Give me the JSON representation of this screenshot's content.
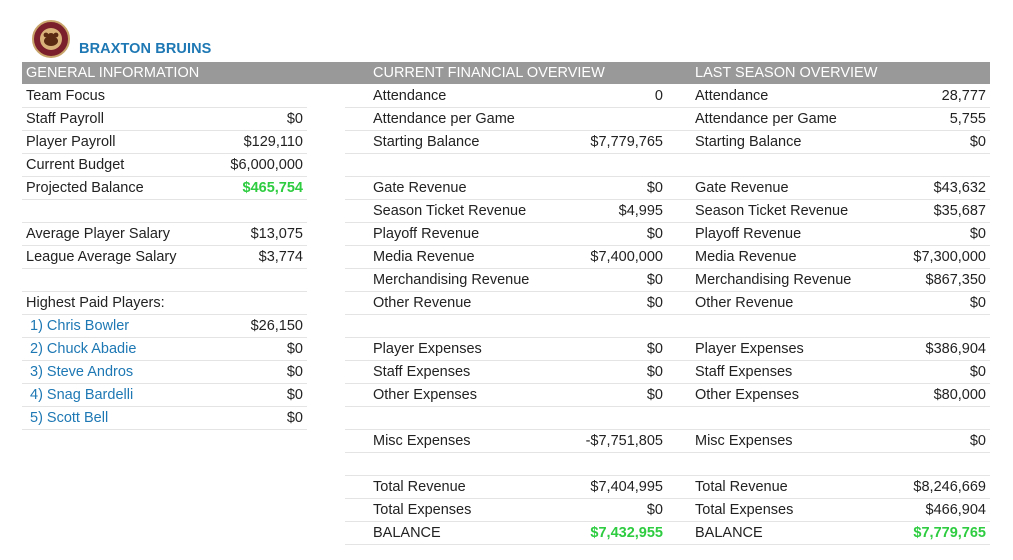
{
  "team": {
    "name": "BRAXTON BRUINS"
  },
  "headers": {
    "general": "GENERAL INFORMATION",
    "current": "CURRENT FINANCIAL OVERVIEW",
    "last": "LAST SEASON OVERVIEW"
  },
  "general": {
    "team_focus_label": "Team Focus",
    "staff_payroll_label": "Staff Payroll",
    "staff_payroll": "$0",
    "player_payroll_label": "Player Payroll",
    "player_payroll": "$129,110",
    "current_budget_label": "Current Budget",
    "current_budget": "$6,000,000",
    "projected_balance_label": "Projected Balance",
    "projected_balance": "$465,754",
    "avg_player_salary_label": "Average Player Salary",
    "avg_player_salary": "$13,075",
    "league_avg_salary_label": "League Average Salary",
    "league_avg_salary": "$3,774",
    "highest_paid_label": "Highest Paid Players:",
    "players": [
      {
        "name": "1) Chris Bowler",
        "salary": "$26,150"
      },
      {
        "name": "2) Chuck Abadie",
        "salary": "$0"
      },
      {
        "name": "3) Steve Andros",
        "salary": "$0"
      },
      {
        "name": "4) Snag Bardelli",
        "salary": "$0"
      },
      {
        "name": "5) Scott Bell",
        "salary": "$0"
      }
    ]
  },
  "current": {
    "attendance_label": "Attendance",
    "attendance": "0",
    "attendance_per_game_label": "Attendance per Game",
    "attendance_per_game": "",
    "starting_balance_label": "Starting Balance",
    "starting_balance": "$7,779,765",
    "gate_revenue_label": "Gate Revenue",
    "gate_revenue": "$0",
    "season_ticket_revenue_label": "Season Ticket Revenue",
    "season_ticket_revenue": "$4,995",
    "playoff_revenue_label": "Playoff Revenue",
    "playoff_revenue": "$0",
    "media_revenue_label": "Media Revenue",
    "media_revenue": "$7,400,000",
    "merch_revenue_label": "Merchandising Revenue",
    "merch_revenue": "$0",
    "other_revenue_label": "Other Revenue",
    "other_revenue": "$0",
    "player_expenses_label": "Player Expenses",
    "player_expenses": "$0",
    "staff_expenses_label": "Staff Expenses",
    "staff_expenses": "$0",
    "other_expenses_label": "Other Expenses",
    "other_expenses": "$0",
    "misc_expenses_label": "Misc Expenses",
    "misc_expenses": "-$7,751,805",
    "total_revenue_label": "Total Revenue",
    "total_revenue": "$7,404,995",
    "total_expenses_label": "Total Expenses",
    "total_expenses": "$0",
    "balance_label": "BALANCE",
    "balance": "$7,432,955"
  },
  "last": {
    "attendance_label": "Attendance",
    "attendance": "28,777",
    "attendance_per_game_label": "Attendance per Game",
    "attendance_per_game": "5,755",
    "starting_balance_label": "Starting Balance",
    "starting_balance": "$0",
    "gate_revenue_label": "Gate Revenue",
    "gate_revenue": "$43,632",
    "season_ticket_revenue_label": "Season Ticket Revenue",
    "season_ticket_revenue": "$35,687",
    "playoff_revenue_label": "Playoff Revenue",
    "playoff_revenue": "$0",
    "media_revenue_label": "Media Revenue",
    "media_revenue": "$7,300,000",
    "merch_revenue_label": "Merchandising Revenue",
    "merch_revenue": "$867,350",
    "other_revenue_label": "Other Revenue",
    "other_revenue": "$0",
    "player_expenses_label": "Player Expenses",
    "player_expenses": "$386,904",
    "staff_expenses_label": "Staff Expenses",
    "staff_expenses": "$0",
    "other_expenses_label": "Other Expenses",
    "other_expenses": "$80,000",
    "misc_expenses_label": "Misc Expenses",
    "misc_expenses": "$0",
    "total_revenue_label": "Total Revenue",
    "total_revenue": "$8,246,669",
    "total_expenses_label": "Total Expenses",
    "total_expenses": "$466,904",
    "balance_label": "BALANCE",
    "balance": "$7,779,765"
  },
  "colors": {
    "link": "#1e78b4",
    "positive": "#2ecc40",
    "header_bg": "#999999",
    "logo": "#7a1f2b"
  },
  "icons": {
    "logo": "bear-logo-icon"
  }
}
